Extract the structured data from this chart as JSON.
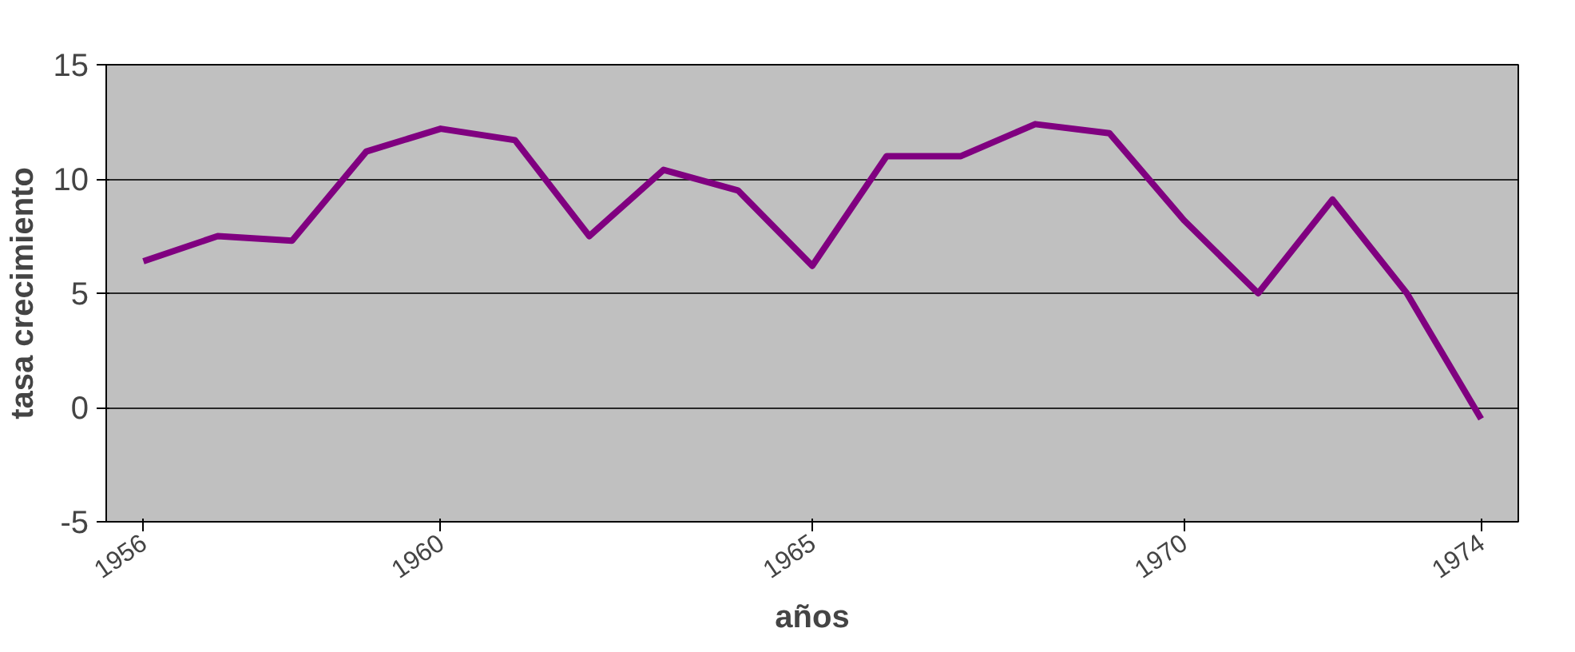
{
  "chart_data": {
    "type": "line",
    "xlabel": "años",
    "ylabel": "tasa crecimiento",
    "categories": [
      "1956",
      null,
      null,
      null,
      "1960",
      null,
      null,
      null,
      null,
      "1965",
      null,
      null,
      null,
      null,
      "1970",
      null,
      null,
      null,
      "1974"
    ],
    "series": [
      {
        "color": "#800080",
        "values": [
          6.4,
          7.5,
          7.3,
          11.2,
          12.2,
          11.7,
          7.5,
          10.4,
          9.5,
          6.2,
          11.0,
          11.0,
          12.4,
          12.0,
          8.2,
          5.0,
          9.1,
          5.0,
          -0.5
        ]
      }
    ],
    "ylim": [
      -5,
      15
    ],
    "yticks": [
      -5,
      0,
      5,
      10,
      15
    ],
    "grid": "y",
    "marker": "none",
    "line_style": "solid"
  }
}
